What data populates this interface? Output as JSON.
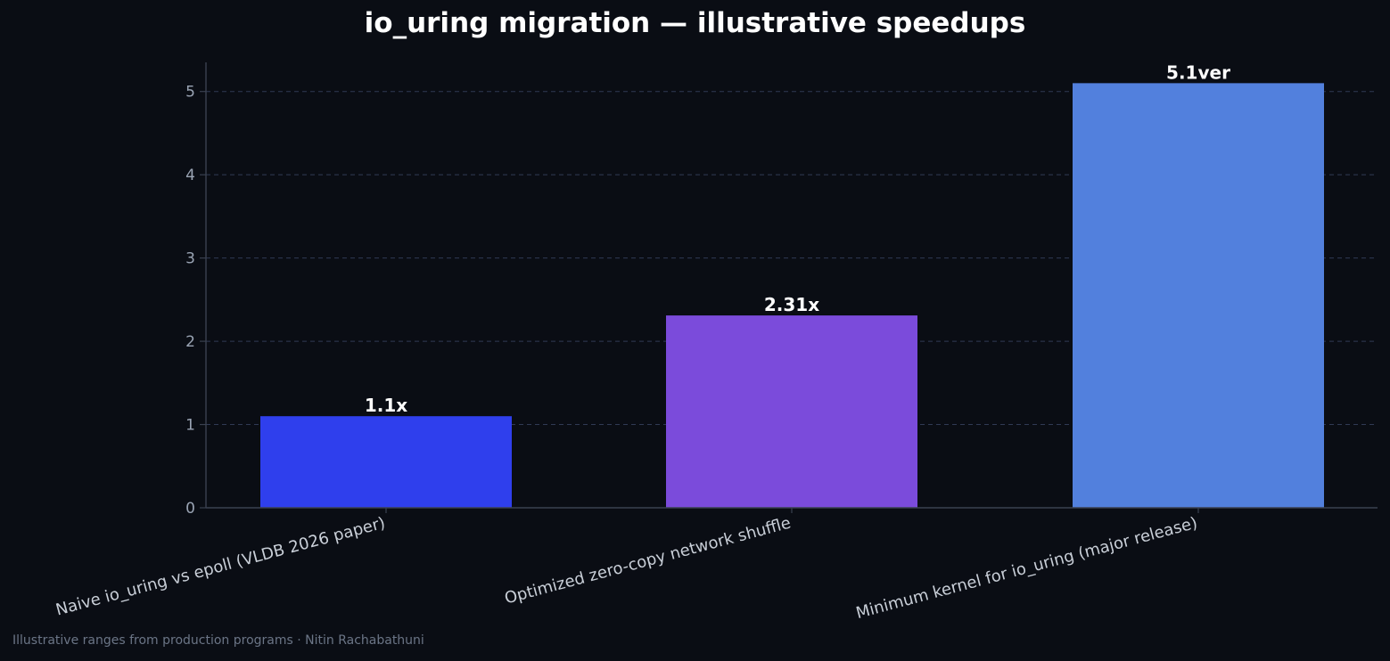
{
  "chart_data": {
    "type": "bar",
    "title": "io_uring migration — illustrative speedups",
    "categories": [
      "Naive io_uring vs epoll (VLDB 2026 paper)",
      "Optimized zero-copy network shuffle",
      "Minimum kernel for io_uring (major release)"
    ],
    "values": [
      1.1,
      2.31,
      5.1
    ],
    "data_labels": [
      "1.1x",
      "2.31x",
      "5.1ver"
    ],
    "colors": [
      "#2f3fed",
      "#7b4bdb",
      "#5280dd"
    ],
    "ylim": [
      0,
      5.35
    ],
    "yticks": [
      0,
      1,
      2,
      3,
      4,
      5
    ],
    "grid": true,
    "xlabel": "",
    "ylabel": ""
  },
  "footer": "Illustrative ranges from production programs · Nitin Rachabathuni",
  "colors": {
    "background": "#0a0d14",
    "axis": "#3a4150",
    "grid": "#3d4a6a",
    "tick_label": "#9aa4b4",
    "category_label": "#c9cfd8",
    "footer": "#6b7586"
  }
}
